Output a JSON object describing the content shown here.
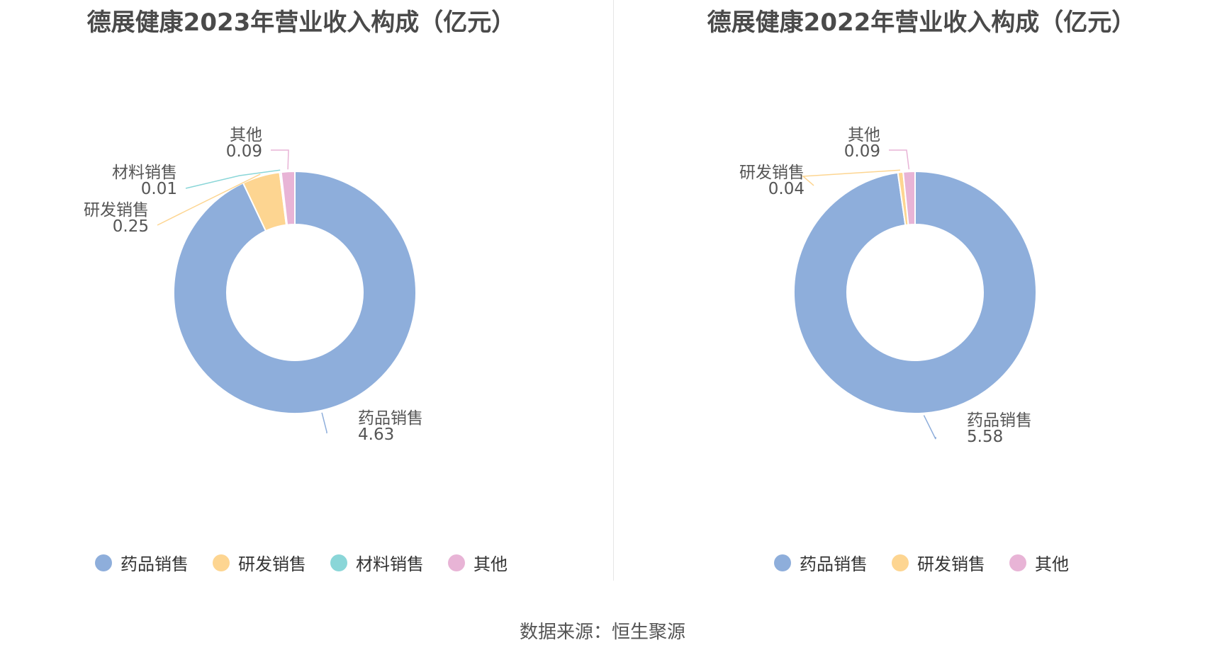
{
  "colors": {
    "药品销售": "#8eaedb",
    "研发销售": "#fdd591",
    "材料销售": "#8ad6d8",
    "其他": "#e8b4d6"
  },
  "source": "数据来源：恒生聚源",
  "chart_data": [
    {
      "type": "pie",
      "donut": true,
      "title": "德展健康2023年营业收入构成（亿元）",
      "categories": [
        "药品销售",
        "研发销售",
        "材料销售",
        "其他"
      ],
      "values": [
        4.63,
        0.25,
        0.01,
        0.09
      ],
      "value_labels": [
        "4.63",
        "0.25",
        "0.01",
        "0.09"
      ],
      "legend": [
        "药品销售",
        "研发销售",
        "材料销售",
        "其他"
      ],
      "legend_position": "bottom"
    },
    {
      "type": "pie",
      "donut": true,
      "title": "德展健康2022年营业收入构成（亿元）",
      "categories": [
        "药品销售",
        "研发销售",
        "其他"
      ],
      "values": [
        5.58,
        0.04,
        0.09
      ],
      "value_labels": [
        "5.58",
        "0.04",
        "0.09"
      ],
      "legend": [
        "药品销售",
        "研发销售",
        "其他"
      ],
      "legend_position": "bottom"
    }
  ]
}
